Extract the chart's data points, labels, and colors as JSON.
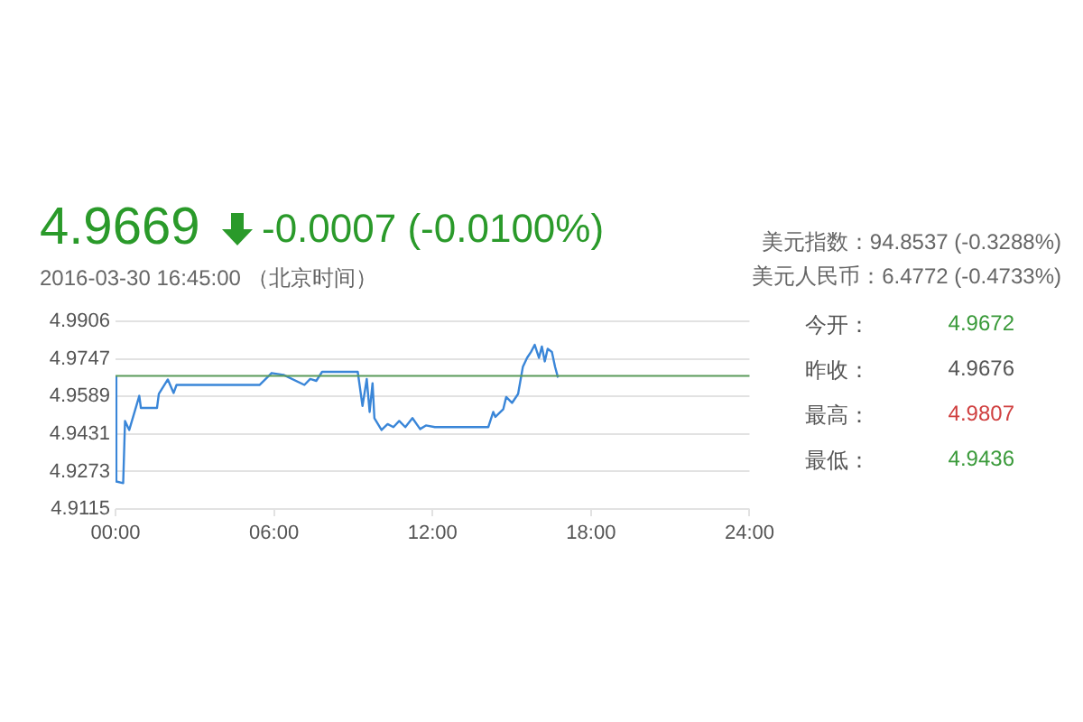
{
  "chart_data": {
    "type": "line",
    "title": "4.9669",
    "subtitle": "-0.0007 (-0.0100%)",
    "annotations": [
      "2016-03-30 16:45:00 （北京时间）",
      "美元指数：94.8537 (-0.3288%)",
      "美元人民币：6.4772 (-0.4733%)",
      "今开：",
      "4.9672",
      "昨收：",
      "4.9676",
      "最高：",
      "4.9807",
      "最低：",
      "4.9436"
    ],
    "series": [
      {
        "color": "#3a86d8",
        "x": [
          0,
          0.03,
          0.29,
          0.36,
          0.52,
          0.9,
          0.96,
          1.57,
          1.64,
          1.98,
          2.2,
          2.31,
          5.46,
          5.91,
          6.36,
          7.15,
          7.37,
          7.6,
          7.82,
          9.17,
          9.35,
          9.51,
          9.62,
          9.73,
          9.8,
          10.07,
          10.3,
          10.52,
          10.74,
          10.97,
          11.24,
          11.53,
          11.75,
          12.09,
          14.11,
          14.3,
          14.38,
          14.68,
          14.79,
          15.01,
          15.24,
          15.42,
          15.58,
          15.73,
          15.87,
          16.03,
          16.14,
          16.25,
          16.36,
          16.52,
          16.64,
          16.75
        ],
        "values": [
          4.9672,
          4.9231,
          4.9224,
          4.9486,
          4.9448,
          4.9592,
          4.9541,
          4.9541,
          4.96,
          4.9661,
          4.9604,
          4.9638,
          4.9638,
          4.9688,
          4.968,
          4.9638,
          4.9663,
          4.9655,
          4.9693,
          4.9693,
          4.9549,
          4.9663,
          4.9524,
          4.9645,
          4.9498,
          4.9448,
          4.9473,
          4.946,
          4.9486,
          4.946,
          4.9498,
          4.9452,
          4.9467,
          4.946,
          4.946,
          4.9524,
          4.9503,
          4.9536,
          4.9587,
          4.9562,
          4.96,
          4.9714,
          4.9752,
          4.9777,
          4.9807,
          4.9752,
          4.98,
          4.9737,
          4.979,
          4.9777,
          4.9714,
          4.9669
        ]
      }
    ],
    "xlim": [
      0,
      24
    ],
    "xticks": [
      {
        "value": 0,
        "label": "00:00"
      },
      {
        "value": 6,
        "label": "06:00"
      },
      {
        "value": 12,
        "label": "12:00"
      },
      {
        "value": 18,
        "label": "18:00"
      },
      {
        "value": 24,
        "label": "24:00"
      }
    ],
    "ylim": [
      4.9115,
      4.9906
    ],
    "yticks": [
      4.9115,
      4.9273,
      4.9431,
      4.9589,
      4.9747,
      4.9906
    ],
    "ref_lines": [
      {
        "axis": "y",
        "value": 4.9676,
        "color": "#5a9a5a"
      }
    ],
    "grid": "y",
    "legend": false,
    "marker": "none",
    "line_style": "solid"
  }
}
